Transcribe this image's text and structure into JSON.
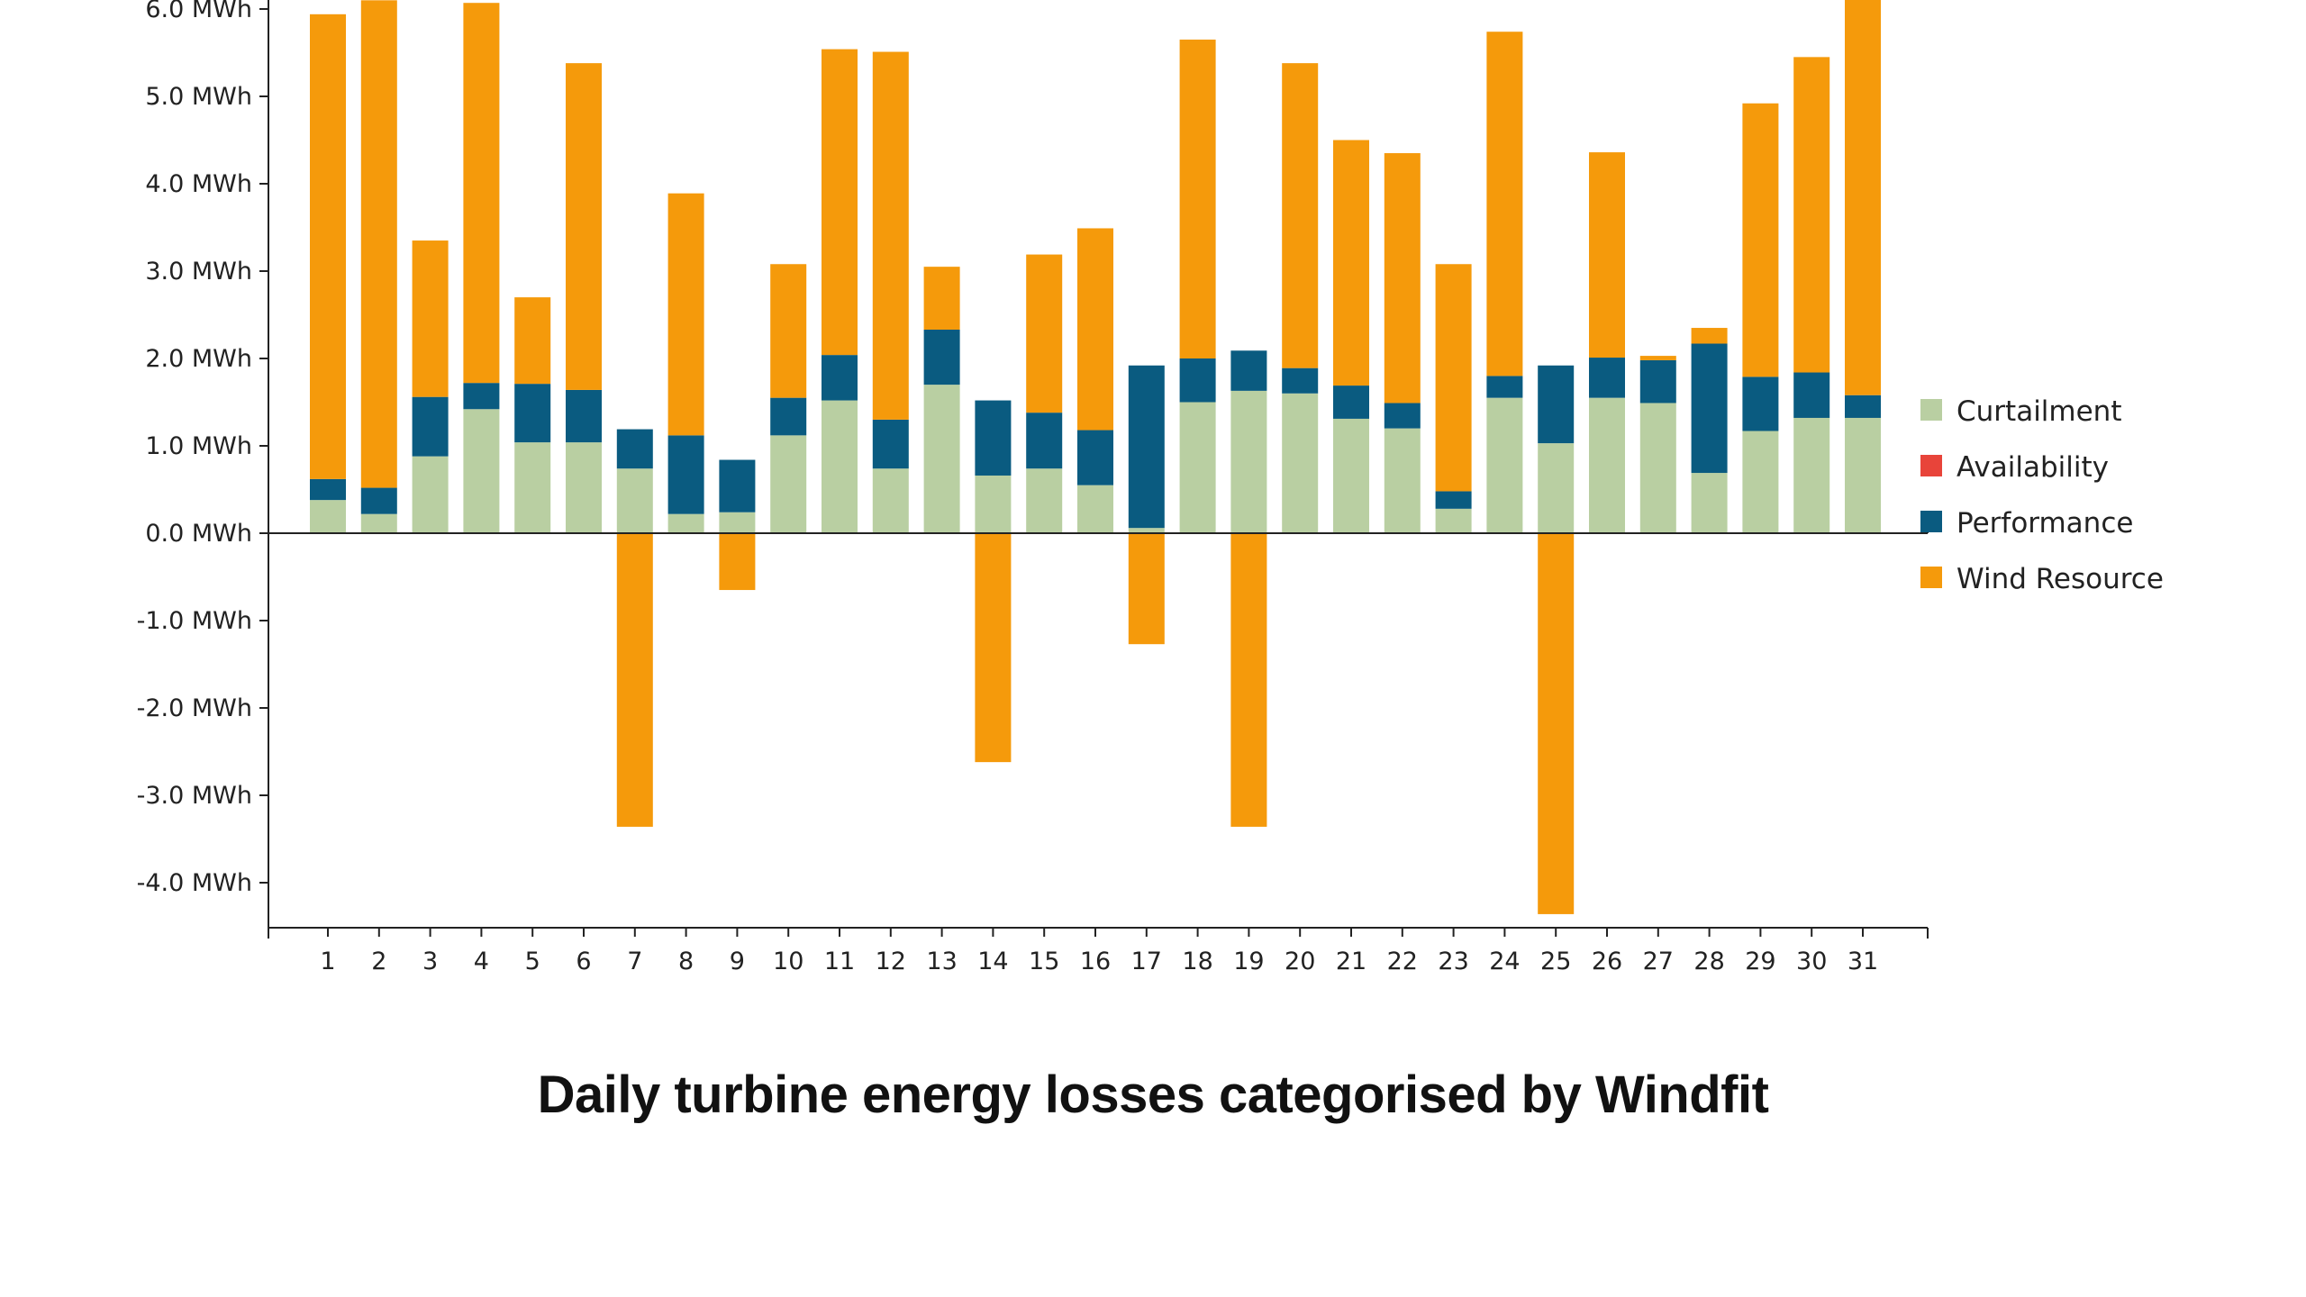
{
  "chart_data": {
    "type": "bar",
    "stacked": true,
    "title": "Daily turbine energy losses categorised by Windfit",
    "xlabel": "",
    "ylabel": "",
    "categories": [
      "1",
      "2",
      "3",
      "4",
      "5",
      "6",
      "7",
      "8",
      "9",
      "10",
      "11",
      "12",
      "13",
      "14",
      "15",
      "16",
      "17",
      "18",
      "19",
      "20",
      "21",
      "22",
      "23",
      "24",
      "25",
      "26",
      "27",
      "28",
      "29",
      "30",
      "31"
    ],
    "ylim": [
      -4.6,
      6.1
    ],
    "yticks": [
      6.0,
      5.0,
      4.0,
      3.0,
      2.0,
      1.0,
      0.0,
      -1.0,
      -2.0,
      -3.0,
      -4.0
    ],
    "ytick_labels": [
      "6.0 MWh",
      "5.0 MWh",
      "4.0 MWh",
      "3.0 MWh",
      "2.0 MWh",
      "1.0 MWh",
      "0.0 MWh",
      "-1.0 MWh",
      "-2.0 MWh",
      "-3.0 MWh",
      "-4.0 MWh"
    ],
    "grid": false,
    "legend_position": "right",
    "legend": [
      {
        "name": "Curtailment",
        "color": "#b9cfa2"
      },
      {
        "name": "Availability",
        "color": "#e8443a"
      },
      {
        "name": "Performance",
        "color": "#0a5b80"
      },
      {
        "name": "Wind Resource",
        "color": "#f59a0b"
      }
    ],
    "series": [
      {
        "name": "Curtailment",
        "color": "#b9cfa2",
        "values": [
          0.38,
          0.22,
          0.88,
          1.42,
          1.04,
          1.04,
          0.74,
          0.22,
          0.24,
          1.12,
          1.52,
          0.74,
          1.7,
          0.66,
          0.74,
          0.55,
          0.06,
          1.5,
          1.63,
          1.6,
          1.31,
          1.2,
          0.28,
          1.55,
          1.03,
          1.55,
          1.49,
          0.69,
          1.17,
          1.32,
          1.32
        ]
      },
      {
        "name": "Availability",
        "color": "#e8443a",
        "values": [
          0,
          0,
          0,
          0,
          0,
          0,
          0,
          0,
          0,
          0,
          0,
          0,
          0,
          0,
          0,
          0,
          0,
          0,
          0,
          0,
          0,
          0,
          0,
          0,
          0,
          0,
          0,
          0,
          0,
          0,
          0
        ]
      },
      {
        "name": "Performance",
        "color": "#0a5b80",
        "values": [
          0.24,
          0.3,
          0.68,
          0.3,
          0.67,
          0.6,
          0.45,
          0.9,
          0.6,
          0.43,
          0.52,
          0.56,
          0.63,
          0.86,
          0.64,
          0.63,
          1.86,
          0.5,
          0.46,
          0.29,
          0.38,
          0.29,
          0.2,
          0.25,
          0.89,
          0.46,
          0.49,
          1.48,
          0.62,
          0.52,
          0.26
        ]
      },
      {
        "name": "Wind Resource",
        "color": "#f59a0b",
        "values": [
          5.32,
          5.58,
          1.79,
          4.35,
          0.99,
          3.74,
          -3.36,
          2.77,
          -0.65,
          1.53,
          3.5,
          4.21,
          0.72,
          -2.62,
          1.81,
          2.31,
          -1.27,
          3.65,
          -3.36,
          3.49,
          2.81,
          2.86,
          2.6,
          3.94,
          -4.36,
          2.35,
          0.05,
          0.18,
          3.13,
          3.61,
          4.55
        ]
      }
    ]
  }
}
